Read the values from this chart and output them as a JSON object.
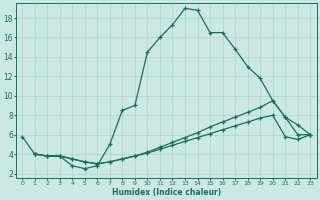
{
  "xlabel": "Humidex (Indice chaleur)",
  "xlim": [
    -0.5,
    23.5
  ],
  "ylim": [
    1.5,
    19.5
  ],
  "yticks": [
    2,
    4,
    6,
    8,
    10,
    12,
    14,
    16,
    18
  ],
  "xticks": [
    0,
    1,
    2,
    3,
    4,
    5,
    6,
    7,
    8,
    9,
    10,
    11,
    12,
    13,
    14,
    15,
    16,
    17,
    18,
    19,
    20,
    21,
    22,
    23
  ],
  "bg_color": "#cce8e4",
  "line_color": "#1a6e62",
  "grid_color": "#aad4ce",
  "line1_x": [
    0,
    1,
    2,
    3,
    4,
    5,
    6,
    7,
    8,
    9,
    10,
    11,
    12,
    13,
    14,
    15,
    16,
    17,
    18,
    19,
    20,
    21,
    22,
    23
  ],
  "line1_y": [
    5.8,
    4.0,
    3.8,
    3.8,
    2.8,
    2.5,
    2.8,
    5.0,
    8.5,
    9.0,
    14.5,
    16.0,
    17.3,
    19.0,
    18.8,
    16.5,
    16.5,
    14.8,
    13.0,
    11.8,
    9.5,
    7.8,
    7.0,
    6.0
  ],
  "line2_x": [
    1,
    2,
    3,
    4,
    5,
    6,
    7,
    8,
    9,
    10,
    11,
    12,
    13,
    14,
    15,
    16,
    17,
    18,
    19,
    20,
    21,
    22,
    23
  ],
  "line2_y": [
    4.0,
    3.8,
    3.8,
    3.5,
    3.2,
    3.0,
    3.2,
    3.5,
    3.8,
    4.2,
    4.7,
    5.2,
    5.7,
    6.2,
    6.8,
    7.3,
    7.8,
    8.3,
    8.8,
    9.5,
    7.8,
    6.0,
    6.0
  ],
  "line3_x": [
    1,
    2,
    3,
    4,
    5,
    6,
    7,
    8,
    9,
    10,
    11,
    12,
    13,
    14,
    15,
    16,
    17,
    18,
    19,
    20,
    21,
    22,
    23
  ],
  "line3_y": [
    4.0,
    3.8,
    3.8,
    3.5,
    3.2,
    3.0,
    3.2,
    3.5,
    3.8,
    4.1,
    4.5,
    4.9,
    5.3,
    5.7,
    6.1,
    6.5,
    6.9,
    7.3,
    7.7,
    8.0,
    5.8,
    5.5,
    6.0
  ]
}
